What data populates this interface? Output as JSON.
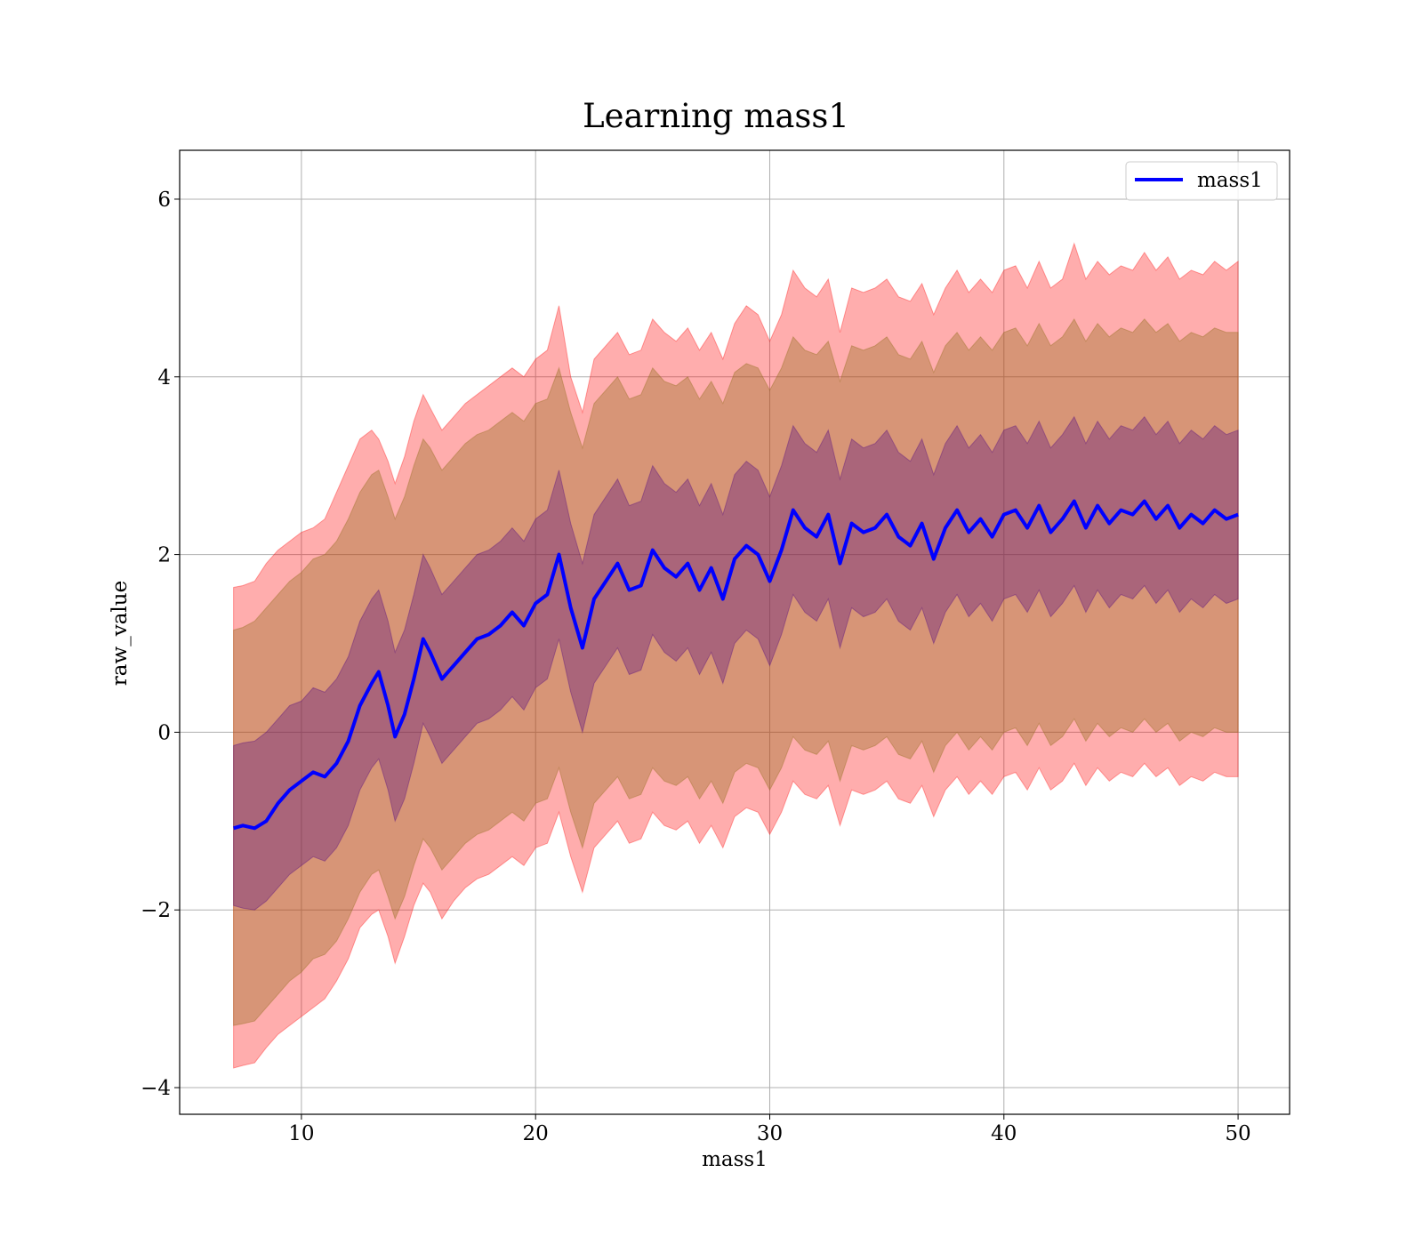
{
  "chart_data": {
    "type": "line",
    "title": "Learning mass1",
    "xlabel": "mass1",
    "ylabel": "raw_value",
    "xlim": [
      4.8,
      52.2
    ],
    "ylim": [
      -4.3,
      6.55
    ],
    "x_ticks": [
      10,
      20,
      30,
      40,
      50
    ],
    "y_ticks": [
      -4,
      -2,
      0,
      2,
      4,
      6
    ],
    "x_tick_labels": [
      "10",
      "20",
      "30",
      "40",
      "50"
    ],
    "y_tick_labels": [
      "−4",
      "−2",
      "0",
      "2",
      "4",
      "6"
    ],
    "grid": true,
    "legend": {
      "placement": "top-right",
      "entries": [
        "mass1"
      ]
    },
    "colors": {
      "line": "#0000ff",
      "band_outer": "#ff0000",
      "band_middle": "#8b6914",
      "band_inner": "#4b0082",
      "grid": "#b0b0b0"
    },
    "series": [
      {
        "name": "mass1",
        "x": [
          7.1,
          7.5,
          8.0,
          8.5,
          9.0,
          9.5,
          10.0,
          10.5,
          11.0,
          11.5,
          12.0,
          12.5,
          13.0,
          13.3,
          13.7,
          14.0,
          14.4,
          14.8,
          15.2,
          15.5,
          16.0,
          16.5,
          17.0,
          17.5,
          18.0,
          18.5,
          19.0,
          19.5,
          20.0,
          20.5,
          21.0,
          21.5,
          22.0,
          22.5,
          23.0,
          23.5,
          24.0,
          24.5,
          25.0,
          25.5,
          26.0,
          26.5,
          27.0,
          27.5,
          28.0,
          28.5,
          29.0,
          29.5,
          30.0,
          30.5,
          31.0,
          31.5,
          32.0,
          32.5,
          33.0,
          33.5,
          34.0,
          34.5,
          35.0,
          35.5,
          36.0,
          36.5,
          37.0,
          37.5,
          38.0,
          38.5,
          39.0,
          39.5,
          40.0,
          40.5,
          41.0,
          41.5,
          42.0,
          42.5,
          43.0,
          43.5,
          44.0,
          44.5,
          45.0,
          45.5,
          46.0,
          46.5,
          47.0,
          47.5,
          48.0,
          48.5,
          49.0,
          49.5,
          50.0
        ],
        "mean": [
          -1.08,
          -1.05,
          -1.08,
          -1.0,
          -0.8,
          -0.65,
          -0.55,
          -0.45,
          -0.5,
          -0.35,
          -0.1,
          0.3,
          0.55,
          0.68,
          0.3,
          -0.05,
          0.2,
          0.6,
          1.05,
          0.9,
          0.6,
          0.75,
          0.9,
          1.05,
          1.1,
          1.2,
          1.35,
          1.2,
          1.45,
          1.55,
          2.0,
          1.4,
          0.95,
          1.5,
          1.7,
          1.9,
          1.6,
          1.65,
          2.05,
          1.85,
          1.75,
          1.9,
          1.6,
          1.85,
          1.5,
          1.95,
          2.1,
          2.0,
          1.7,
          2.05,
          2.5,
          2.3,
          2.2,
          2.45,
          1.9,
          2.35,
          2.25,
          2.3,
          2.45,
          2.2,
          2.1,
          2.35,
          1.95,
          2.3,
          2.5,
          2.25,
          2.4,
          2.2,
          2.45,
          2.5,
          2.3,
          2.55,
          2.25,
          2.4,
          2.6,
          2.3,
          2.55,
          2.35,
          2.5,
          2.45,
          2.6,
          2.4,
          2.55,
          2.3,
          2.45,
          2.35,
          2.5,
          2.4,
          2.45
        ],
        "inner_upper": [
          -0.15,
          -0.12,
          -0.1,
          0.0,
          0.15,
          0.3,
          0.35,
          0.5,
          0.45,
          0.6,
          0.85,
          1.25,
          1.5,
          1.6,
          1.25,
          0.9,
          1.15,
          1.55,
          2.0,
          1.85,
          1.55,
          1.7,
          1.85,
          2.0,
          2.05,
          2.15,
          2.3,
          2.15,
          2.4,
          2.5,
          2.95,
          2.35,
          1.9,
          2.45,
          2.65,
          2.85,
          2.55,
          2.6,
          3.0,
          2.8,
          2.7,
          2.85,
          2.55,
          2.8,
          2.45,
          2.9,
          3.05,
          2.95,
          2.65,
          3.0,
          3.45,
          3.25,
          3.15,
          3.4,
          2.85,
          3.3,
          3.2,
          3.25,
          3.4,
          3.15,
          3.05,
          3.3,
          2.9,
          3.25,
          3.45,
          3.2,
          3.35,
          3.15,
          3.4,
          3.45,
          3.25,
          3.5,
          3.2,
          3.35,
          3.55,
          3.25,
          3.5,
          3.3,
          3.45,
          3.4,
          3.55,
          3.35,
          3.5,
          3.25,
          3.4,
          3.3,
          3.45,
          3.35,
          3.4
        ],
        "inner_lower": [
          -1.95,
          -1.98,
          -2.0,
          -1.9,
          -1.75,
          -1.6,
          -1.5,
          -1.4,
          -1.45,
          -1.3,
          -1.05,
          -0.65,
          -0.4,
          -0.3,
          -0.65,
          -1.0,
          -0.75,
          -0.35,
          0.1,
          -0.05,
          -0.35,
          -0.2,
          -0.05,
          0.1,
          0.15,
          0.25,
          0.4,
          0.25,
          0.5,
          0.6,
          1.05,
          0.45,
          0.0,
          0.55,
          0.75,
          0.95,
          0.65,
          0.7,
          1.1,
          0.9,
          0.8,
          0.95,
          0.65,
          0.9,
          0.55,
          1.0,
          1.15,
          1.05,
          0.75,
          1.1,
          1.55,
          1.35,
          1.25,
          1.5,
          0.95,
          1.4,
          1.3,
          1.35,
          1.5,
          1.25,
          1.15,
          1.4,
          1.0,
          1.35,
          1.55,
          1.3,
          1.45,
          1.25,
          1.5,
          1.55,
          1.35,
          1.6,
          1.3,
          1.45,
          1.65,
          1.35,
          1.6,
          1.4,
          1.55,
          1.5,
          1.65,
          1.45,
          1.6,
          1.35,
          1.5,
          1.4,
          1.55,
          1.45,
          1.5
        ],
        "middle_upper": [
          1.15,
          1.18,
          1.25,
          1.4,
          1.55,
          1.7,
          1.8,
          1.95,
          2.0,
          2.15,
          2.4,
          2.7,
          2.9,
          2.95,
          2.65,
          2.4,
          2.65,
          3.0,
          3.3,
          3.2,
          2.95,
          3.1,
          3.25,
          3.35,
          3.4,
          3.5,
          3.6,
          3.5,
          3.7,
          3.75,
          4.1,
          3.6,
          3.2,
          3.7,
          3.85,
          4.0,
          3.75,
          3.8,
          4.1,
          3.95,
          3.9,
          4.0,
          3.75,
          3.95,
          3.7,
          4.05,
          4.15,
          4.1,
          3.85,
          4.1,
          4.45,
          4.3,
          4.25,
          4.4,
          3.95,
          4.35,
          4.3,
          4.35,
          4.45,
          4.25,
          4.2,
          4.4,
          4.05,
          4.35,
          4.5,
          4.3,
          4.45,
          4.3,
          4.5,
          4.55,
          4.35,
          4.6,
          4.35,
          4.45,
          4.65,
          4.4,
          4.6,
          4.45,
          4.55,
          4.5,
          4.65,
          4.5,
          4.6,
          4.4,
          4.5,
          4.45,
          4.55,
          4.5,
          4.5
        ],
        "middle_lower": [
          -3.3,
          -3.28,
          -3.25,
          -3.1,
          -2.95,
          -2.8,
          -2.7,
          -2.55,
          -2.5,
          -2.35,
          -2.1,
          -1.8,
          -1.6,
          -1.55,
          -1.85,
          -2.1,
          -1.85,
          -1.5,
          -1.2,
          -1.3,
          -1.55,
          -1.4,
          -1.25,
          -1.15,
          -1.1,
          -1.0,
          -0.9,
          -1.0,
          -0.8,
          -0.75,
          -0.4,
          -0.9,
          -1.3,
          -0.8,
          -0.65,
          -0.5,
          -0.75,
          -0.7,
          -0.4,
          -0.55,
          -0.6,
          -0.5,
          -0.75,
          -0.55,
          -0.8,
          -0.45,
          -0.35,
          -0.4,
          -0.65,
          -0.4,
          -0.05,
          -0.2,
          -0.25,
          -0.1,
          -0.55,
          -0.15,
          -0.2,
          -0.15,
          -0.05,
          -0.25,
          -0.3,
          -0.1,
          -0.45,
          -0.15,
          0.0,
          -0.2,
          -0.05,
          -0.2,
          0.0,
          0.05,
          -0.15,
          0.1,
          -0.15,
          -0.05,
          0.15,
          -0.1,
          0.1,
          -0.05,
          0.05,
          0.0,
          0.15,
          0.0,
          0.1,
          -0.1,
          0.0,
          -0.05,
          0.05,
          0.0,
          0.0
        ],
        "outer_upper": [
          1.63,
          1.65,
          1.7,
          1.9,
          2.05,
          2.15,
          2.25,
          2.3,
          2.4,
          2.7,
          3.0,
          3.3,
          3.4,
          3.3,
          3.05,
          2.8,
          3.1,
          3.5,
          3.8,
          3.65,
          3.4,
          3.55,
          3.7,
          3.8,
          3.9,
          4.0,
          4.1,
          4.0,
          4.2,
          4.3,
          4.8,
          4.0,
          3.6,
          4.2,
          4.35,
          4.5,
          4.25,
          4.3,
          4.65,
          4.5,
          4.4,
          4.55,
          4.3,
          4.5,
          4.2,
          4.6,
          4.8,
          4.7,
          4.4,
          4.7,
          5.2,
          5.0,
          4.9,
          5.1,
          4.5,
          5.0,
          4.95,
          5.0,
          5.1,
          4.9,
          4.85,
          5.05,
          4.7,
          5.0,
          5.2,
          4.95,
          5.1,
          4.95,
          5.2,
          5.25,
          5.0,
          5.3,
          5.0,
          5.1,
          5.5,
          5.1,
          5.3,
          5.15,
          5.25,
          5.2,
          5.4,
          5.2,
          5.35,
          5.1,
          5.2,
          5.15,
          5.3,
          5.2,
          5.3
        ],
        "outer_lower": [
          -3.78,
          -3.75,
          -3.72,
          -3.55,
          -3.4,
          -3.3,
          -3.2,
          -3.1,
          -3.0,
          -2.8,
          -2.55,
          -2.2,
          -2.05,
          -2.0,
          -2.3,
          -2.6,
          -2.3,
          -1.95,
          -1.7,
          -1.8,
          -2.1,
          -1.9,
          -1.75,
          -1.65,
          -1.6,
          -1.5,
          -1.4,
          -1.5,
          -1.3,
          -1.25,
          -0.9,
          -1.4,
          -1.8,
          -1.3,
          -1.15,
          -1.0,
          -1.25,
          -1.2,
          -0.9,
          -1.05,
          -1.1,
          -1.0,
          -1.25,
          -1.05,
          -1.3,
          -0.95,
          -0.85,
          -0.9,
          -1.15,
          -0.9,
          -0.55,
          -0.7,
          -0.75,
          -0.6,
          -1.05,
          -0.65,
          -0.7,
          -0.65,
          -0.55,
          -0.75,
          -0.8,
          -0.6,
          -0.95,
          -0.65,
          -0.5,
          -0.7,
          -0.55,
          -0.7,
          -0.5,
          -0.45,
          -0.65,
          -0.4,
          -0.65,
          -0.55,
          -0.35,
          -0.6,
          -0.4,
          -0.55,
          -0.45,
          -0.5,
          -0.35,
          -0.5,
          -0.4,
          -0.6,
          -0.5,
          -0.55,
          -0.45,
          -0.5,
          -0.5
        ]
      }
    ]
  }
}
